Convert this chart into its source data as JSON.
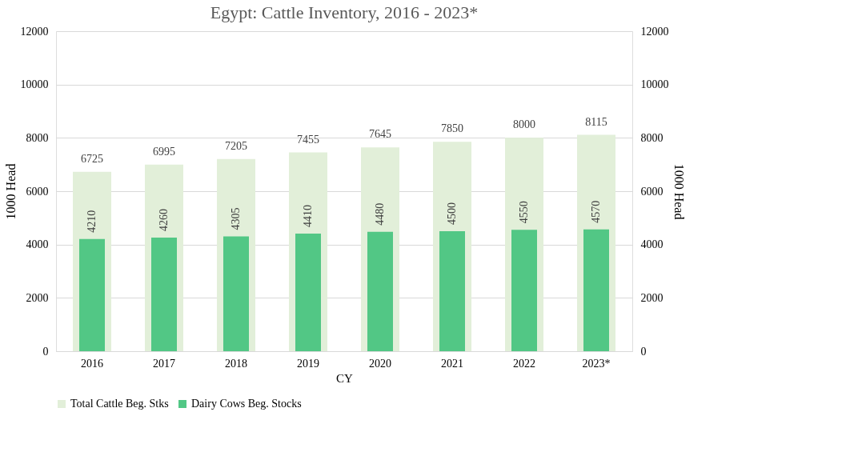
{
  "chart_data": {
    "type": "bar",
    "title": "Egypt: Cattle Inventory, 2016 - 2023*",
    "xlabel": "CY",
    "ylabel": "1000 Head",
    "y2label": "1000 Head",
    "categories": [
      "2016",
      "2017",
      "2018",
      "2019",
      "2020",
      "2021",
      "2022",
      "2023*"
    ],
    "series": [
      {
        "name": "Total Cattle Beg. Stks",
        "color": "#e2efd9",
        "values": [
          6725,
          6995,
          7205,
          7455,
          7645,
          7850,
          8000,
          8115
        ]
      },
      {
        "name": "Dairy Cows Beg. Stocks",
        "color": "#52c785",
        "values": [
          4210,
          4260,
          4305,
          4410,
          4480,
          4500,
          4550,
          4570
        ]
      }
    ],
    "ylim": [
      0,
      12000
    ],
    "yticks": [
      0,
      2000,
      4000,
      6000,
      8000,
      10000,
      12000
    ],
    "y2lim": [
      0,
      12000
    ],
    "y2ticks": [
      0,
      2000,
      4000,
      6000,
      8000,
      10000,
      12000
    ],
    "data_labels": true,
    "grid": "y",
    "legend": "bottom"
  }
}
